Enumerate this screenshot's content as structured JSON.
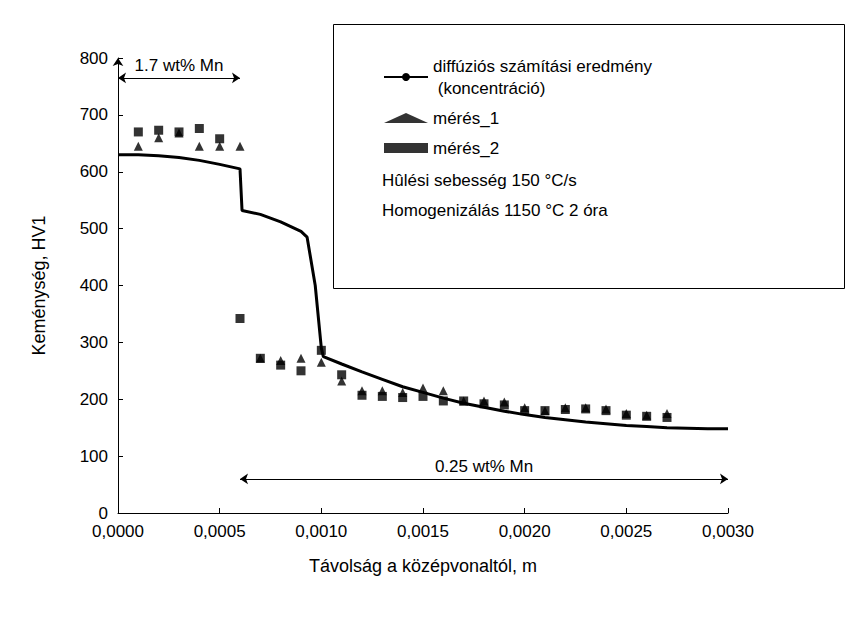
{
  "chart_data": {
    "type": "line",
    "xlabel": "Távolság a középvonaltól, m",
    "ylabel": "Keménység, HV1",
    "xlim": [
      0,
      0.003
    ],
    "xticks": [
      {
        "value": 0,
        "label": "0,0000"
      },
      {
        "value": 0.0005,
        "label": "0,0005"
      },
      {
        "value": 0.001,
        "label": "0,0010"
      },
      {
        "value": 0.0015,
        "label": "0,0015"
      },
      {
        "value": 0.002,
        "label": "0,0020"
      },
      {
        "value": 0.0025,
        "label": "0,0025"
      },
      {
        "value": 0.003,
        "label": "0,0030"
      }
    ],
    "ylim": [
      0,
      800
    ],
    "yticks": [
      0,
      100,
      200,
      300,
      400,
      500,
      600,
      700,
      800
    ],
    "grid": false,
    "legend": "upper right",
    "series": [
      {
        "name": "diffúziós számítási eredmény\n (koncentráció)",
        "type": "line",
        "color": "#000000",
        "line_style": "solid",
        "marker": "none",
        "x": [
          0,
          0.0001,
          0.0002,
          0.0003,
          0.0004,
          0.0005,
          0.0006,
          0.00061,
          0.0007,
          0.0008,
          0.0009,
          0.00093,
          0.00097,
          0.001,
          0.00101,
          0.0011,
          0.0012,
          0.0013,
          0.0014,
          0.0015,
          0.0016,
          0.0017,
          0.0018,
          0.0019,
          0.002,
          0.0021,
          0.0022,
          0.0023,
          0.0024,
          0.0025,
          0.0026,
          0.0027,
          0.0028,
          0.0029,
          0.003
        ],
        "values": [
          630,
          630,
          628,
          625,
          620,
          613,
          605,
          532,
          525,
          512,
          495,
          485,
          400,
          290,
          275,
          262,
          248,
          235,
          222,
          212,
          202,
          193,
          186,
          179,
          173,
          168,
          164,
          160,
          157,
          154,
          152,
          150,
          149,
          148,
          148
        ]
      },
      {
        "name": "mérés_1",
        "type": "scatter",
        "color": "#000000",
        "marker": "triangle",
        "x": [
          0.0001,
          0.0002,
          0.0003,
          0.0004,
          0.0005,
          0.0006,
          0.0007,
          0.0008,
          0.0009,
          0.001,
          0.0011,
          0.0012,
          0.0013,
          0.0014,
          0.0015,
          0.0016,
          0.0017,
          0.0018,
          0.0019,
          0.002,
          0.0021,
          0.0022,
          0.0023,
          0.0024,
          0.0025,
          0.0026,
          0.0027
        ],
        "values": [
          645,
          660,
          668,
          645,
          645,
          645,
          272,
          268,
          272,
          265,
          232,
          215,
          215,
          212,
          220,
          215,
          197,
          197,
          195,
          185,
          180,
          185,
          185,
          183,
          175,
          172,
          175
        ]
      },
      {
        "name": "mérés_2",
        "type": "scatter",
        "color": "#000000",
        "marker": "square",
        "x": [
          0.0001,
          0.0002,
          0.0003,
          0.0004,
          0.0005,
          0.0006,
          0.0007,
          0.0008,
          0.0009,
          0.001,
          0.0011,
          0.0012,
          0.0013,
          0.0014,
          0.0015,
          0.0016,
          0.0017,
          0.0018,
          0.0019,
          0.002,
          0.0021,
          0.0022,
          0.0023,
          0.0024,
          0.0025,
          0.0026,
          0.0027
        ],
        "values": [
          670,
          673,
          670,
          676,
          658,
          342,
          272,
          260,
          250,
          286,
          243,
          207,
          205,
          203,
          205,
          197,
          197,
          192,
          190,
          180,
          180,
          182,
          183,
          180,
          172,
          170,
          168
        ]
      }
    ],
    "legend_notes": [
      "Hûlési sebesség 150 °C/s",
      "Homogenizálás 1150 °C 2 óra"
    ],
    "boundary_x": 0.0006,
    "range_annotations": [
      {
        "text": "1.7 wt% Mn",
        "x": [
          0,
          0.0006
        ],
        "y": 765
      },
      {
        "text": "0.25 wt% Mn",
        "x": [
          0.0006,
          0.003
        ],
        "y": 60
      }
    ]
  }
}
